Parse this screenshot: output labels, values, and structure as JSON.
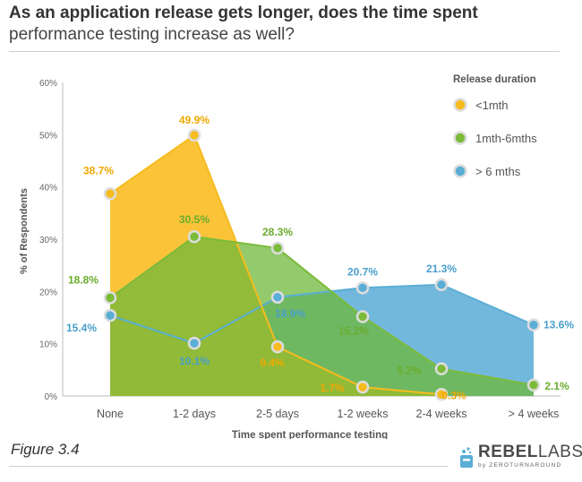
{
  "title": "As an application release gets longer, does the time spent",
  "subtitle": "performance testing increase as well?",
  "figure_caption": "Figure 3.4",
  "logo": {
    "brand_bold": "REBEL",
    "brand_light": "LABS",
    "tagline_prefix": "by ",
    "tagline": "ZEROTURNAROUND"
  },
  "chart_data": {
    "type": "area",
    "title": "As an application release gets longer, does the time spent performance testing increase as well?",
    "xlabel": "Time spent performance testing",
    "ylabel": "% of Respondents",
    "categories": [
      "None",
      "1-2 days",
      "2-5 days",
      "1-2 weeks",
      "2-4 weeks",
      "> 4 weeks"
    ],
    "ylim": [
      0,
      60
    ],
    "yticks": [
      "0%",
      "10%",
      "20%",
      "30%",
      "40%",
      "50%",
      "60%"
    ],
    "legend_title": "Release duration",
    "legend_position": "top-right",
    "grid": false,
    "series": [
      {
        "name": "<1mth",
        "color": "#f6bb1e",
        "fill": "#fbc02d",
        "label_color": "#f0a800",
        "values": [
          38.7,
          49.9,
          9.4,
          1.7,
          0.3,
          null
        ],
        "labels": [
          "38.7%",
          "49.9%",
          "9.4%",
          "1.7%",
          "0.3%",
          ""
        ]
      },
      {
        "name": "1mth-6mths",
        "color": "#7cbb3a",
        "fill": "#6fb83a",
        "label_color": "#6aac2d",
        "values": [
          18.8,
          30.5,
          28.3,
          15.2,
          5.2,
          2.1
        ],
        "labels": [
          "18.8%",
          "30.5%",
          "28.3%",
          "15.2%",
          "5.2%",
          "2.1%"
        ]
      },
      {
        "name": "> 6 mths",
        "color": "#5aaed6",
        "fill": "#6ab4da",
        "label_color": "#4a9fcc",
        "values": [
          15.4,
          10.1,
          18.9,
          20.7,
          21.3,
          13.6
        ],
        "labels": [
          "15.4%",
          "10.1%",
          "18.9%",
          "20.7%",
          "21.3%",
          "13.6%"
        ]
      }
    ]
  }
}
